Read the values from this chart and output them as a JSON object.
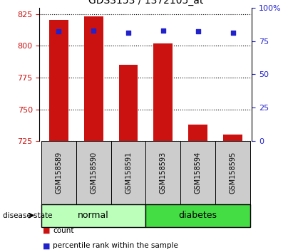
{
  "title": "GDS3153 / 1372105_at",
  "samples": [
    "GSM158589",
    "GSM158590",
    "GSM158591",
    "GSM158593",
    "GSM158594",
    "GSM158595"
  ],
  "count_values": [
    820,
    823,
    785,
    802,
    738,
    730
  ],
  "percentile_values": [
    82,
    83,
    81,
    83,
    82,
    81
  ],
  "ylim_left": [
    725,
    830
  ],
  "ylim_right": [
    0,
    100
  ],
  "yticks_left": [
    725,
    750,
    775,
    800,
    825
  ],
  "yticks_right": [
    0,
    25,
    50,
    75,
    100
  ],
  "ytick_labels_right": [
    "0",
    "25",
    "50",
    "75",
    "100%"
  ],
  "bar_color": "#cc1111",
  "dot_color": "#2222cc",
  "grid_color": "#000000",
  "normal_color": "#bbffbb",
  "diabetes_color": "#44dd44",
  "tick_area_color": "#cccccc",
  "normal_label": "normal",
  "diabetes_label": "diabetes",
  "disease_state_label": "disease state",
  "legend_count": "count",
  "legend_percentile": "percentile rank within the sample",
  "bar_width": 0.55,
  "xlim": [
    -0.55,
    5.55
  ]
}
